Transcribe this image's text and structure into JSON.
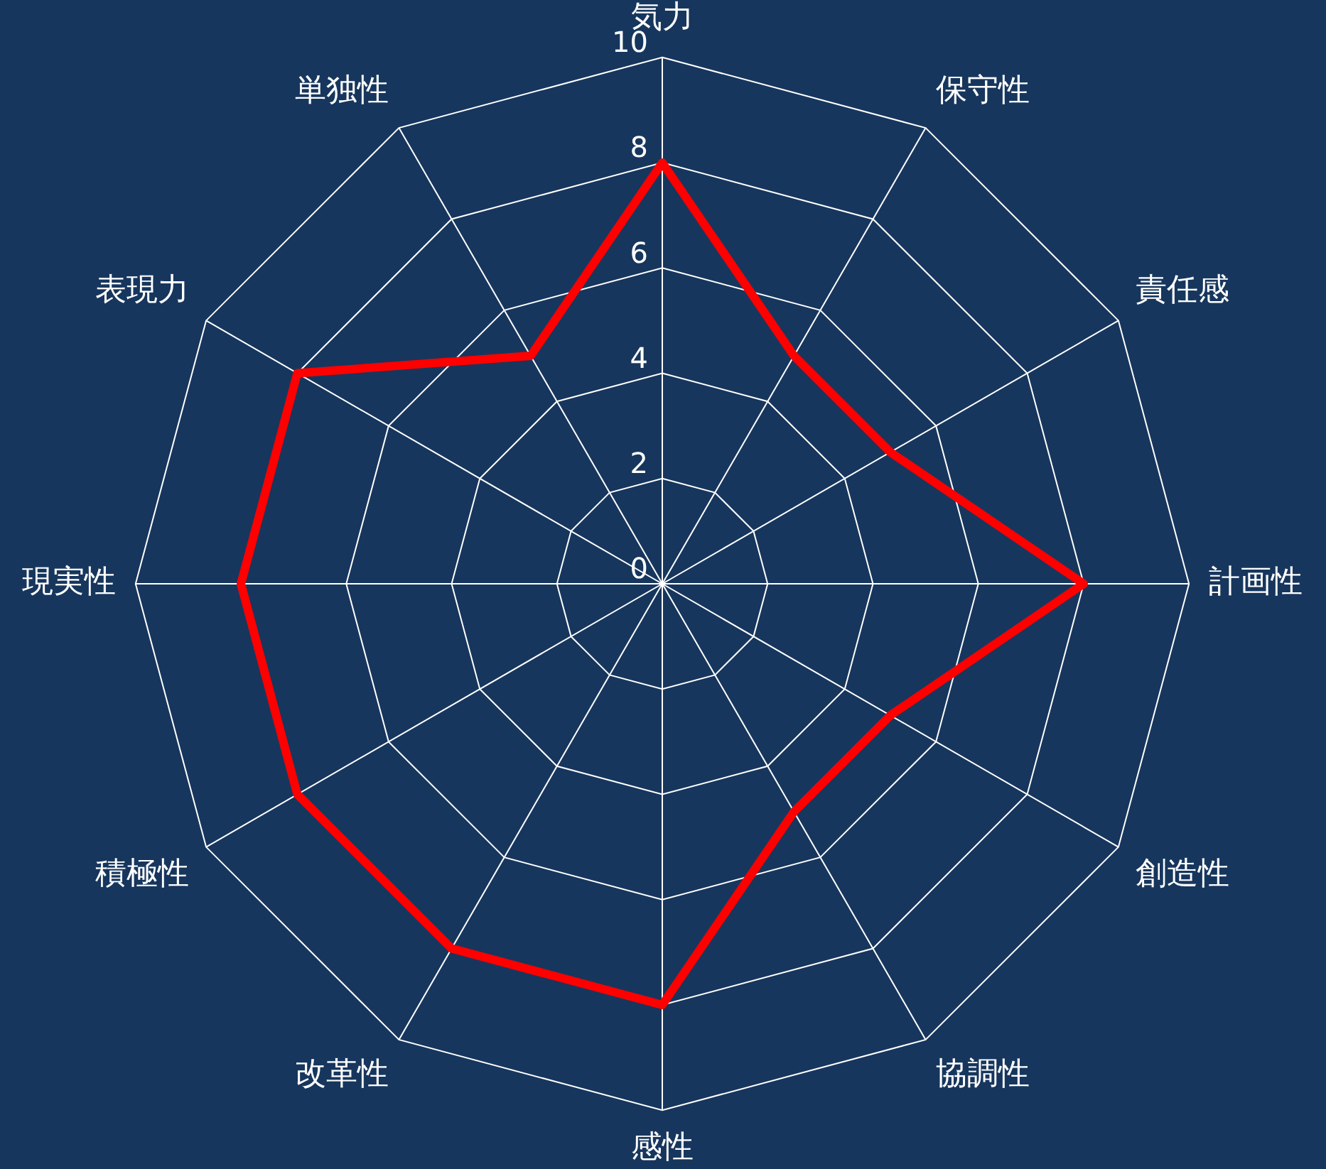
{
  "chart_data": {
    "type": "radar",
    "categories": [
      "気力",
      "保守性",
      "責任感",
      "計画性",
      "創造性",
      "協調性",
      "感性",
      "改革性",
      "積極性",
      "現実性",
      "表現力",
      "単独性"
    ],
    "series": [
      {
        "color": "#ff0000",
        "values": [
          8,
          5,
          5,
          8,
          5,
          5,
          8,
          8,
          8,
          8,
          8,
          5
        ]
      }
    ],
    "ylim": [
      0,
      10
    ],
    "yticks": [
      0,
      2,
      4,
      6,
      8,
      10
    ],
    "grid": true,
    "legend": false,
    "marker": "none",
    "line_style": "solid"
  }
}
